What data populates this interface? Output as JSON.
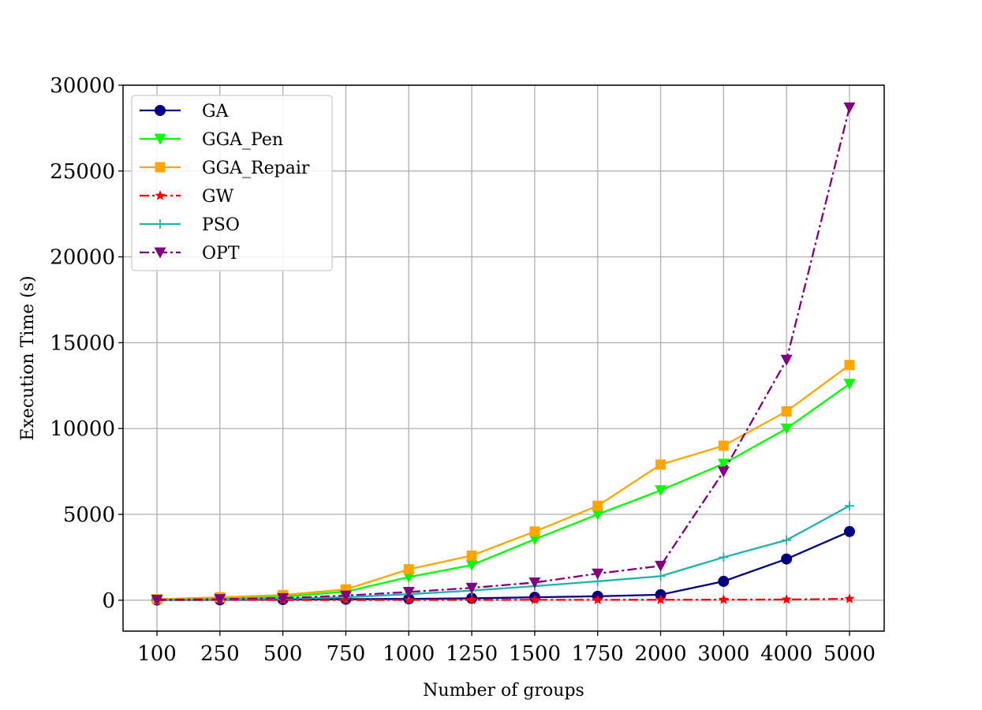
{
  "chart_data": {
    "type": "line",
    "title": "",
    "xlabel": "Number of groups",
    "ylabel": "Execution Time (s)",
    "categories": [
      "100",
      "250",
      "500",
      "750",
      "1000",
      "1250",
      "1500",
      "1750",
      "2000",
      "3000",
      "4000",
      "5000"
    ],
    "ylim": [
      -1800,
      30000
    ],
    "yticks": [
      0,
      5000,
      10000,
      15000,
      20000,
      25000,
      30000
    ],
    "grid": true,
    "legend_position": "upper-left",
    "series": [
      {
        "name": "GA",
        "color": "#000080",
        "marker": "circle",
        "dash": "solid",
        "values": [
          10,
          20,
          40,
          60,
          80,
          110,
          170,
          230,
          320,
          1100,
          2400,
          4000
        ]
      },
      {
        "name": "GGA_Pen",
        "color": "#00ff00",
        "marker": "triangle-down",
        "dash": "solid",
        "values": [
          40,
          120,
          200,
          500,
          1350,
          2050,
          3550,
          5000,
          6400,
          7950,
          10000,
          12600
        ]
      },
      {
        "name": "GGA_Repair",
        "color": "#ffa500",
        "marker": "square",
        "dash": "solid",
        "values": [
          60,
          170,
          300,
          630,
          1800,
          2600,
          4000,
          5500,
          7900,
          9000,
          11000,
          13700
        ]
      },
      {
        "name": "GW",
        "color": "#ff0000",
        "marker": "star",
        "dash": "dashdot",
        "values": [
          5,
          8,
          10,
          12,
          15,
          18,
          20,
          22,
          25,
          30,
          40,
          80
        ]
      },
      {
        "name": "PSO",
        "color": "#20b2aa",
        "marker": "plus",
        "dash": "solid",
        "values": [
          15,
          40,
          90,
          170,
          350,
          560,
          820,
          1100,
          1400,
          2500,
          3500,
          5500
        ]
      },
      {
        "name": "OPT",
        "color": "#800080",
        "marker": "triangle-down",
        "dash": "dashdot",
        "values": [
          20,
          60,
          120,
          270,
          480,
          720,
          1030,
          1550,
          2000,
          7500,
          14000,
          28700
        ]
      }
    ]
  }
}
